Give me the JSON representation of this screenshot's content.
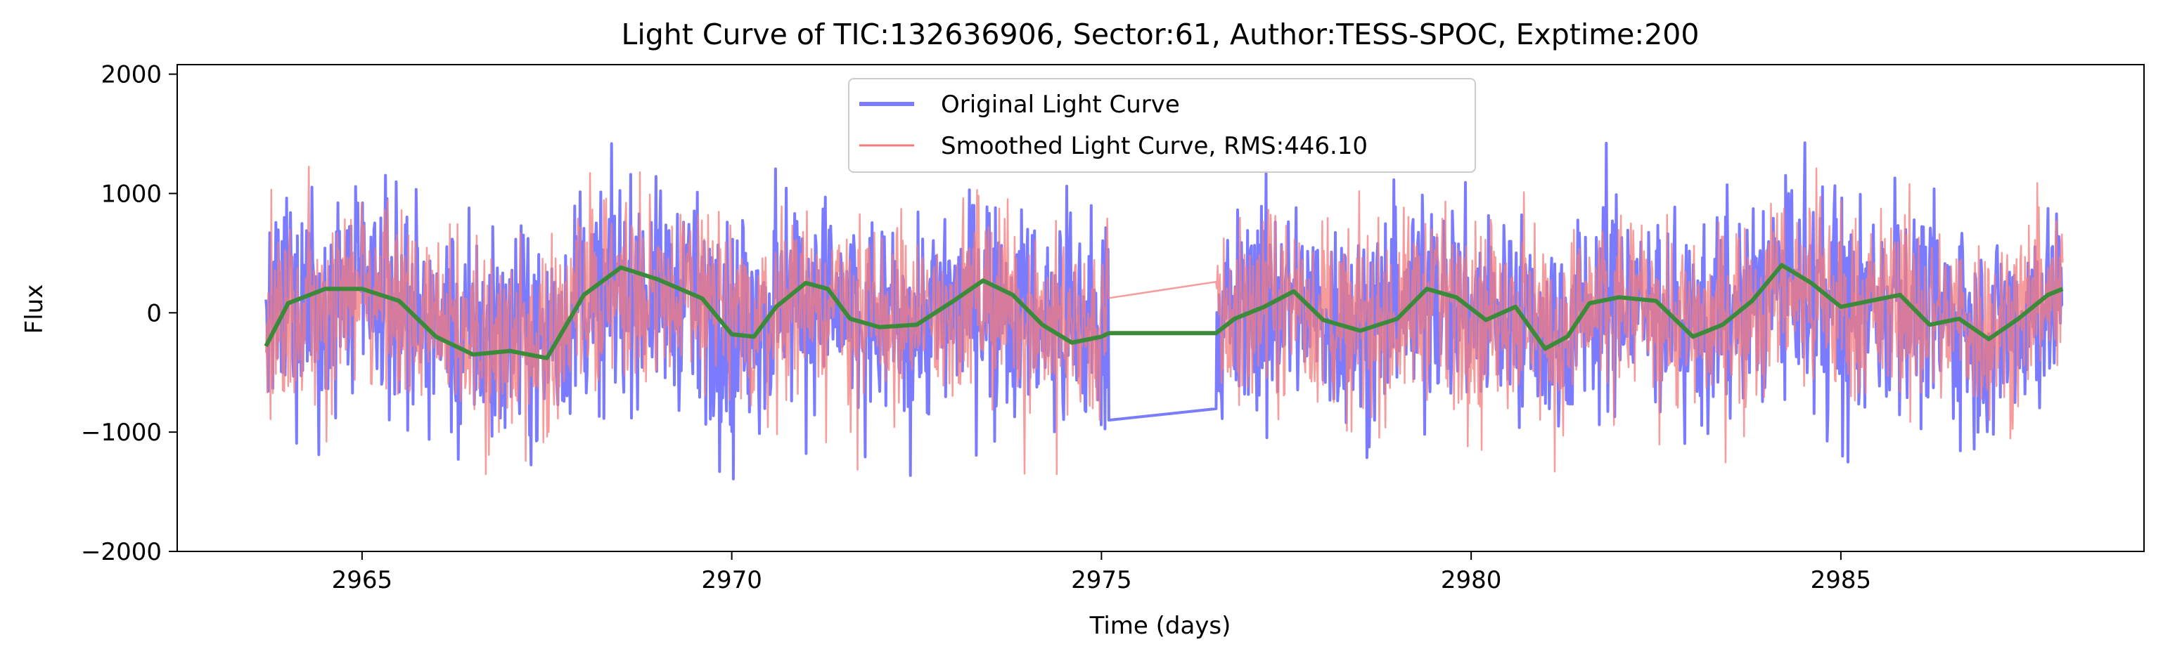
{
  "chart_data": {
    "type": "line",
    "title": "Light Curve of TIC:132636906, Sector:61, Author:TESS-SPOC, Exptime:200",
    "xlabel": "Time (days)",
    "ylabel": "Flux",
    "xlim": [
      2962.5,
      2989.1
    ],
    "ylim": [
      -2000,
      2080
    ],
    "xticks": [
      2965,
      2970,
      2975,
      2980,
      2985
    ],
    "xtick_labels": [
      "2965",
      "2970",
      "2975",
      "2980",
      "2985"
    ],
    "yticks": [
      -2000,
      -1000,
      0,
      1000,
      2000
    ],
    "ytick_labels": [
      "−2000",
      "−1000",
      "0",
      "1000",
      "2000"
    ],
    "grid": false,
    "legend_position": "top-center",
    "segments": [
      [
        2963.7,
        2975.1
      ],
      [
        2976.55,
        2988.0
      ]
    ],
    "series": [
      {
        "name": "Original Light Curve",
        "color": "#7b7bff",
        "kind": "noisy",
        "range": [
          -1800,
          1880
        ],
        "notes": "dense noisy flux curve"
      },
      {
        "name": "Smoothed Light Curve, RMS:446.10",
        "color": "#f47b7b",
        "kind": "noisy",
        "range": [
          -1750,
          1780
        ]
      },
      {
        "name": "",
        "color": "#3a8a3a",
        "kind": "trend",
        "x": [
          2963.7,
          2964.0,
          2964.5,
          2965.0,
          2965.5,
          2966.0,
          2966.5,
          2967.0,
          2967.5,
          2968.0,
          2968.5,
          2969.0,
          2969.3,
          2969.6,
          2970.0,
          2970.3,
          2970.6,
          2971.0,
          2971.3,
          2971.6,
          2972.0,
          2972.5,
          2973.0,
          2973.4,
          2973.8,
          2974.2,
          2974.6,
          2975.0,
          2975.1,
          2976.55,
          2976.8,
          2977.2,
          2977.6,
          2978.0,
          2978.5,
          2979.0,
          2979.4,
          2979.8,
          2980.2,
          2980.6,
          2981.0,
          2981.3,
          2981.6,
          2982.0,
          2982.5,
          2983.0,
          2983.4,
          2983.8,
          2984.2,
          2984.6,
          2985.0,
          2985.4,
          2985.8,
          2986.2,
          2986.6,
          2987.0,
          2987.4,
          2987.8,
          2988.0
        ],
        "y": [
          -280,
          80,
          200,
          200,
          100,
          -200,
          -350,
          -320,
          -380,
          150,
          380,
          280,
          200,
          120,
          -180,
          -200,
          50,
          250,
          200,
          -50,
          -120,
          -100,
          100,
          270,
          150,
          -100,
          -250,
          -200,
          -170,
          -170,
          -50,
          50,
          180,
          -60,
          -150,
          -50,
          200,
          130,
          -60,
          50,
          -300,
          -200,
          80,
          130,
          100,
          -200,
          -100,
          100,
          400,
          250,
          50,
          100,
          150,
          -100,
          -50,
          -220,
          -50,
          150,
          200
        ]
      }
    ]
  }
}
